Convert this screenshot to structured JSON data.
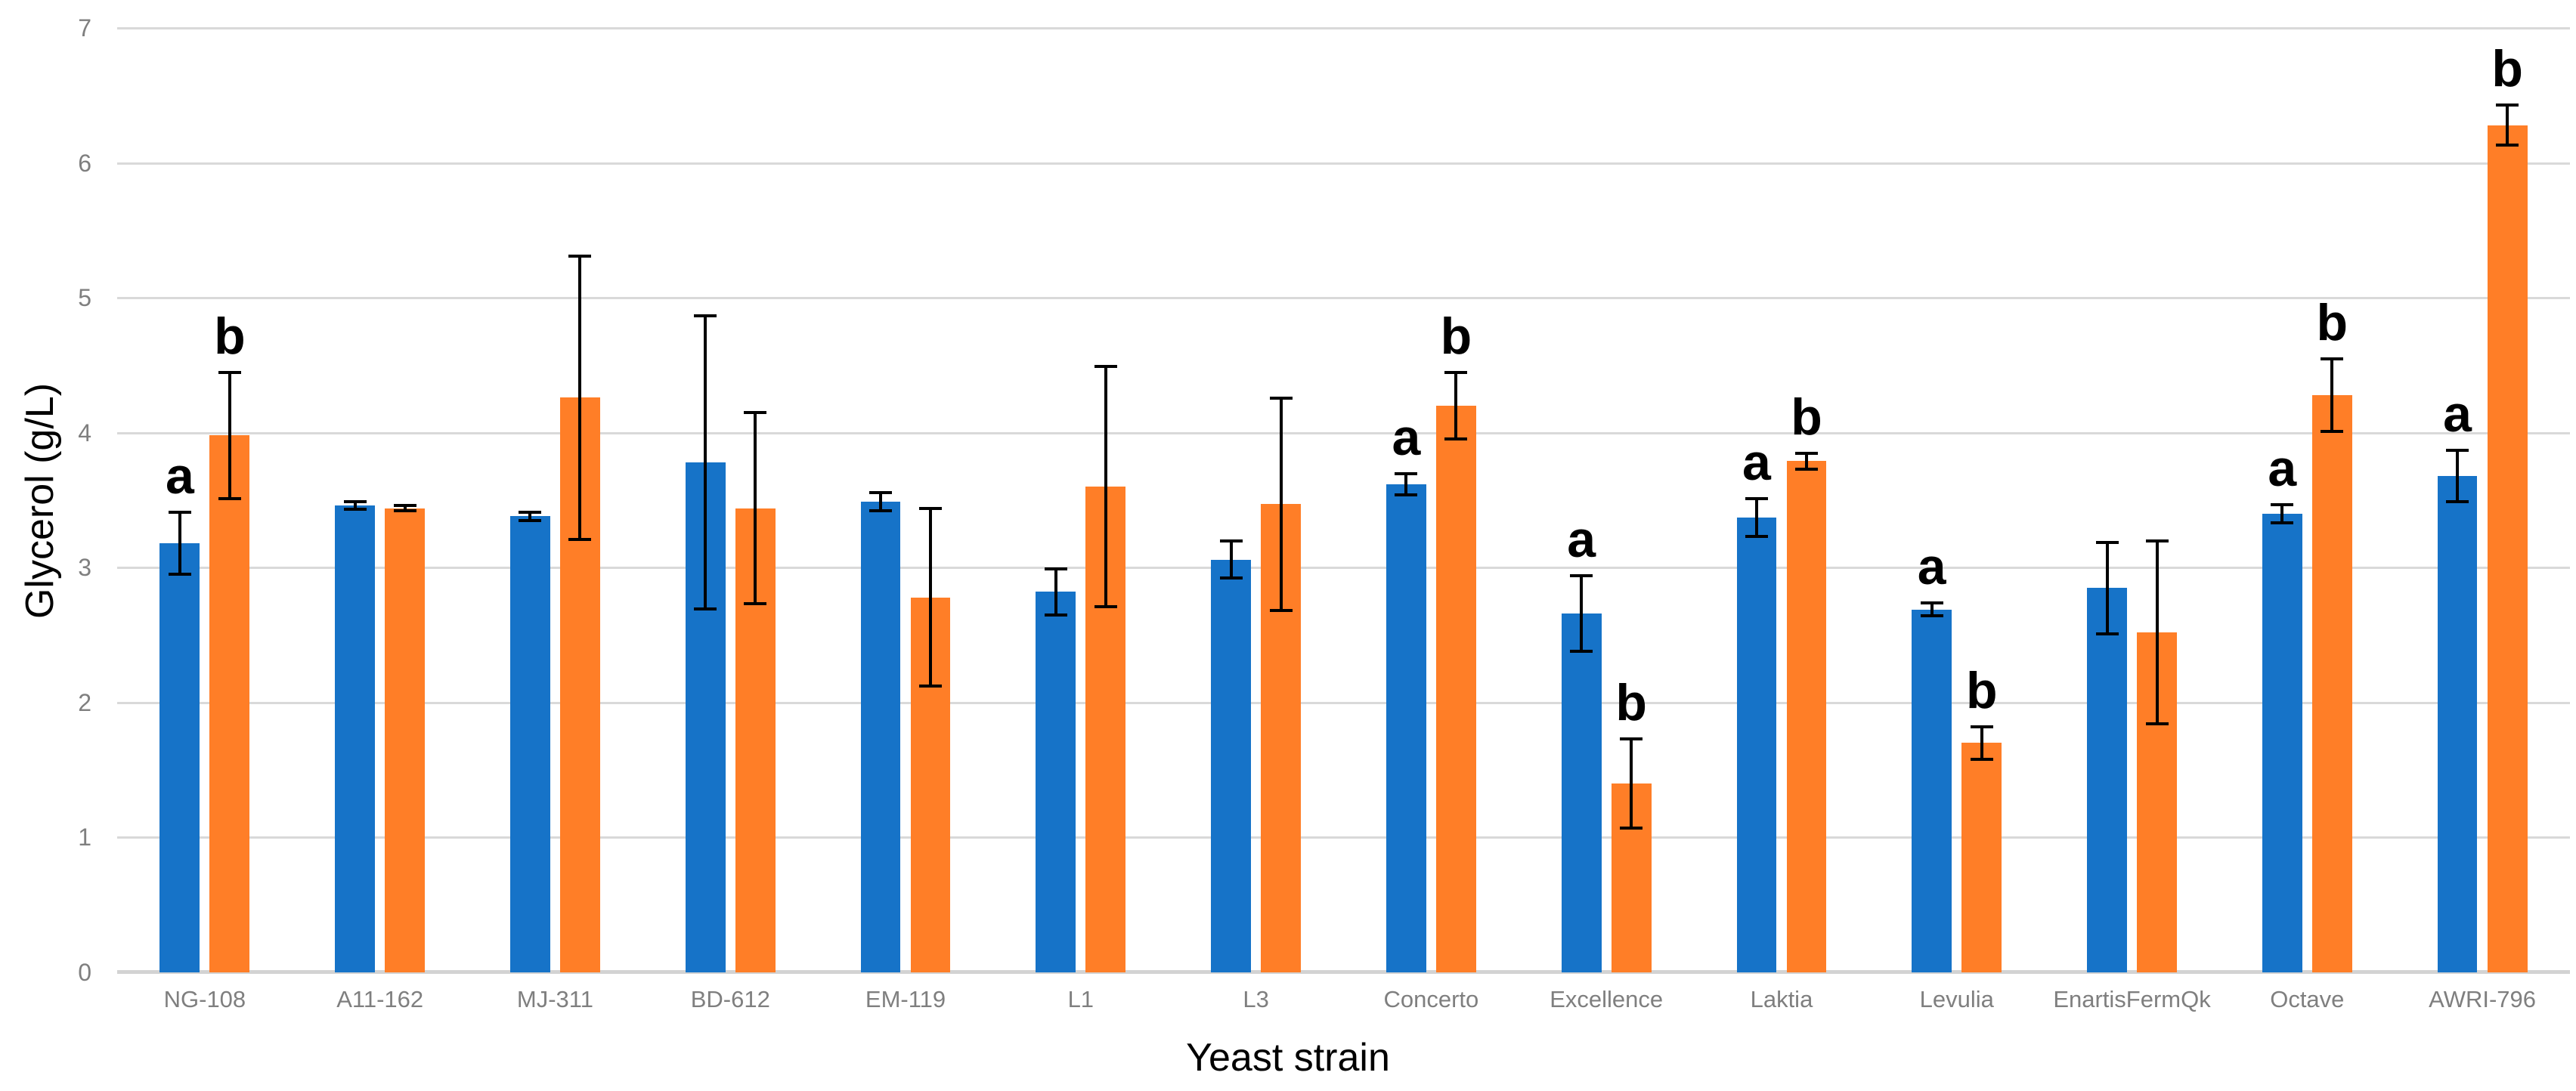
{
  "chart_data": {
    "type": "bar",
    "title": "",
    "xlabel": "Yeast strain",
    "ylabel": "Glycerol (g/L)",
    "ylim": [
      0,
      7
    ],
    "yticks": [
      0,
      1,
      2,
      3,
      4,
      5,
      6,
      7
    ],
    "grid": true,
    "legend": "none",
    "grid_color": "#d9d9d9",
    "tick_label_color": "#7f7f7f",
    "error_bar_color": "#000000",
    "categories": [
      "NG-108",
      "A11-162",
      "MJ-311",
      "BD-612",
      "EM-119",
      "L1",
      "L3",
      "Concerto",
      "Excellence",
      "Laktia",
      "Levulia",
      "EnartisFermQk",
      "Octave",
      "AWRI-796"
    ],
    "series": [
      {
        "name": "blue",
        "color": "#1673c8",
        "values": [
          3.18,
          3.46,
          3.38,
          3.78,
          3.49,
          2.82,
          3.06,
          3.62,
          2.66,
          3.37,
          2.69,
          2.85,
          3.4,
          3.68
        ],
        "errors": [
          0.24,
          0.04,
          0.04,
          1.1,
          0.08,
          0.18,
          0.15,
          0.09,
          0.29,
          0.15,
          0.06,
          0.35,
          0.08,
          0.2
        ],
        "letters": [
          "a",
          "",
          "",
          "",
          "",
          "",
          "",
          "a",
          "a",
          "a",
          "a",
          "",
          "a",
          "a"
        ]
      },
      {
        "name": "orange",
        "color": "#ff7e27",
        "values": [
          3.98,
          3.44,
          4.26,
          3.44,
          2.78,
          3.6,
          3.47,
          4.2,
          1.4,
          3.79,
          1.7,
          2.52,
          4.28,
          6.28
        ],
        "errors": [
          0.48,
          0.03,
          1.06,
          0.72,
          0.67,
          0.9,
          0.8,
          0.26,
          0.34,
          0.07,
          0.13,
          0.69,
          0.28,
          0.16
        ],
        "letters": [
          "b",
          "",
          "",
          "",
          "",
          "",
          "",
          "b",
          "b",
          "b",
          "b",
          "",
          "b",
          "b"
        ]
      }
    ]
  }
}
